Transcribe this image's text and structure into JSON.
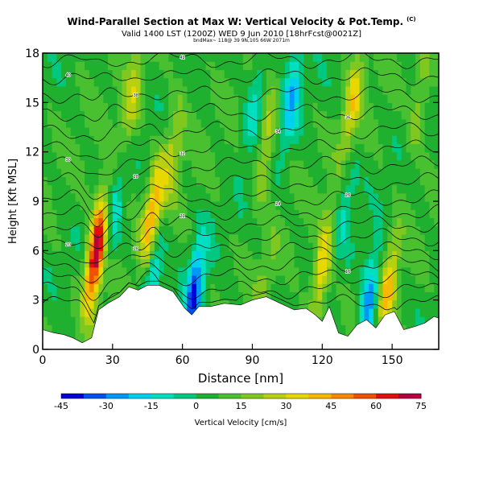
{
  "header": {
    "title": "Wind-Parallel Section at Max W: Vertical Velocity & Pot.Temp.",
    "copyright": "(C)",
    "valid_line": "Valid 1400 LST (1200Z) WED 9 Jun 2010 [18hrFcst@0021Z]",
    "meta_line": "bndMax~ 118@ 39 9N,105 66W 2071m"
  },
  "chart_data": {
    "type": "heatmap",
    "title": "Wind-Parallel Section at Max W: Vertical Velocity & Pot.Temp.",
    "xlabel": "Distance [nm]",
    "ylabel": "Height [Kft MSL]",
    "xlim": [
      0,
      170
    ],
    "ylim": [
      0,
      18
    ],
    "xticks": [
      0,
      30,
      60,
      90,
      120,
      150
    ],
    "yticks": [
      0,
      3,
      6,
      9,
      12,
      15,
      18
    ],
    "colorbar": {
      "label": "Vertical Velocity [cm/s]",
      "ticks": [
        -45,
        -30,
        -15,
        0,
        15,
        30,
        45,
        60,
        75
      ],
      "colors": [
        "#0000d8",
        "#0050f0",
        "#0098f8",
        "#00d0f0",
        "#00e0c0",
        "#00c880",
        "#20b030",
        "#48c030",
        "#80c820",
        "#b8d010",
        "#e8d800",
        "#f8b800",
        "#f88800",
        "#f05000",
        "#e01010",
        "#b80040"
      ]
    },
    "updrafts": [
      {
        "x": 23,
        "y": 6.0,
        "w": 70
      },
      {
        "x": 47,
        "y": 8.0,
        "w": 40
      },
      {
        "x": 38,
        "y": 15.0,
        "w": 22
      },
      {
        "x": 56,
        "y": 12.0,
        "w": 20
      },
      {
        "x": 96,
        "y": 12.5,
        "w": 22
      },
      {
        "x": 120,
        "y": 5.0,
        "w": 32
      },
      {
        "x": 133,
        "y": 15.0,
        "w": 28
      },
      {
        "x": 148,
        "y": 3.5,
        "w": 30
      },
      {
        "x": 162,
        "y": 15.0,
        "w": 14
      },
      {
        "x": 95,
        "y": 3.5,
        "w": 12
      }
    ],
    "downdrafts": [
      {
        "x": 65,
        "y": 3.2,
        "w": -42
      },
      {
        "x": 47,
        "y": 4.5,
        "w": -28
      },
      {
        "x": 140,
        "y": 2.8,
        "w": -35
      },
      {
        "x": 107,
        "y": 15.5,
        "w": -25
      },
      {
        "x": 91,
        "y": 15.0,
        "w": -18
      },
      {
        "x": 31,
        "y": 8.5,
        "w": -16
      },
      {
        "x": 130,
        "y": 9.0,
        "w": -14
      }
    ],
    "terrain": {
      "x": [
        0,
        5,
        9,
        13,
        17,
        21,
        24,
        28,
        33,
        37,
        41,
        45,
        50,
        56,
        61,
        64,
        67,
        72,
        78,
        85,
        90,
        96,
        102,
        108,
        113,
        117,
        120,
        123,
        127,
        131,
        135,
        139,
        143,
        147,
        151,
        155,
        160,
        164,
        168,
        170
      ],
      "y": [
        1.2,
        1.0,
        0.9,
        0.7,
        0.4,
        0.7,
        2.4,
        2.8,
        3.2,
        3.8,
        3.6,
        3.9,
        3.9,
        3.5,
        2.5,
        2.1,
        2.6,
        2.6,
        2.8,
        2.7,
        3.0,
        3.2,
        2.8,
        2.4,
        2.5,
        2.1,
        1.7,
        2.6,
        1.0,
        0.8,
        1.5,
        1.8,
        1.3,
        2.1,
        2.3,
        1.2,
        1.4,
        1.6,
        2.0,
        1.9
      ]
    },
    "theta_contours": {
      "levels": [
        {
          "base": 2.8,
          "label": ""
        },
        {
          "base": 3.6,
          "label": ""
        },
        {
          "base": 4.4,
          "label": ""
        },
        {
          "base": 5.2,
          "label": "16"
        },
        {
          "base": 6.0,
          "label": "18"
        },
        {
          "base": 6.8,
          "label": "20"
        },
        {
          "base": 7.6,
          "label": "22"
        },
        {
          "base": 8.4,
          "label": "24"
        },
        {
          "base": 9.2,
          "label": "26"
        },
        {
          "base": 10.2,
          "label": "28"
        },
        {
          "base": 11.2,
          "label": "30"
        },
        {
          "base": 12.2,
          "label": "32"
        },
        {
          "base": 13.3,
          "label": "34"
        },
        {
          "base": 14.4,
          "label": "36"
        },
        {
          "base": 15.5,
          "label": "38"
        },
        {
          "base": 16.6,
          "label": "40"
        },
        {
          "base": 17.6,
          "label": "42"
        }
      ]
    }
  }
}
